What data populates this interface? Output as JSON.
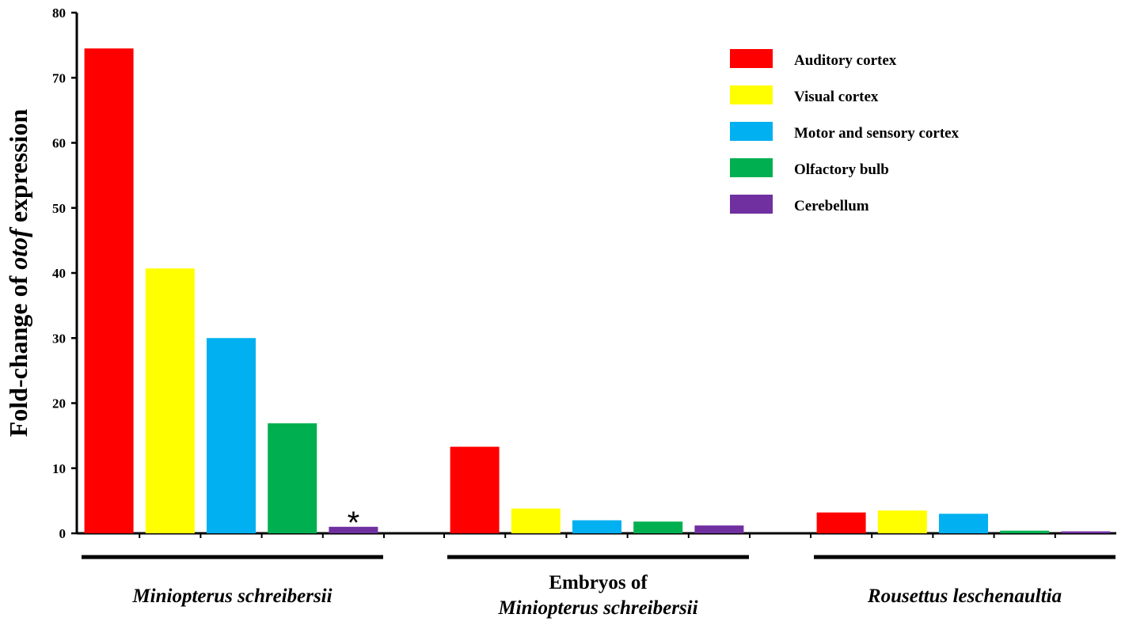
{
  "chart_data": {
    "type": "bar",
    "ylabel_parts": [
      "Fold-change of ",
      "otof",
      " expression"
    ],
    "ylim": [
      0,
      80
    ],
    "yticks": [
      0,
      10,
      20,
      30,
      40,
      50,
      60,
      70,
      80
    ],
    "grid": false,
    "legend_position": "top-right",
    "series": [
      {
        "name": "Auditory cortex",
        "color": "#ff0000"
      },
      {
        "name": "Visual cortex",
        "color": "#ffff00"
      },
      {
        "name": "Motor and sensory cortex",
        "color": "#00b0f0"
      },
      {
        "name": "Olfactory bulb",
        "color": "#00b050"
      },
      {
        "name": "Cerebellum",
        "color": "#7030a0"
      }
    ],
    "groups": [
      {
        "label_lines": [
          "Miniopterus schreibersii"
        ],
        "italic": [
          true
        ],
        "values": [
          74.5,
          40.7,
          30.0,
          16.9,
          1.0
        ]
      },
      {
        "label_lines": [
          "Embryos of",
          "Miniopterus schreibersii"
        ],
        "italic": [
          false,
          true
        ],
        "values": [
          13.3,
          3.8,
          2.0,
          1.8,
          1.2
        ]
      },
      {
        "label_lines": [
          "Rousettus leschenaultia"
        ],
        "italic": [
          true
        ],
        "values": [
          3.2,
          3.5,
          3.0,
          0.4,
          0.3
        ]
      }
    ],
    "annotations": [
      {
        "text": "*",
        "group": 0,
        "series": 4
      }
    ]
  }
}
